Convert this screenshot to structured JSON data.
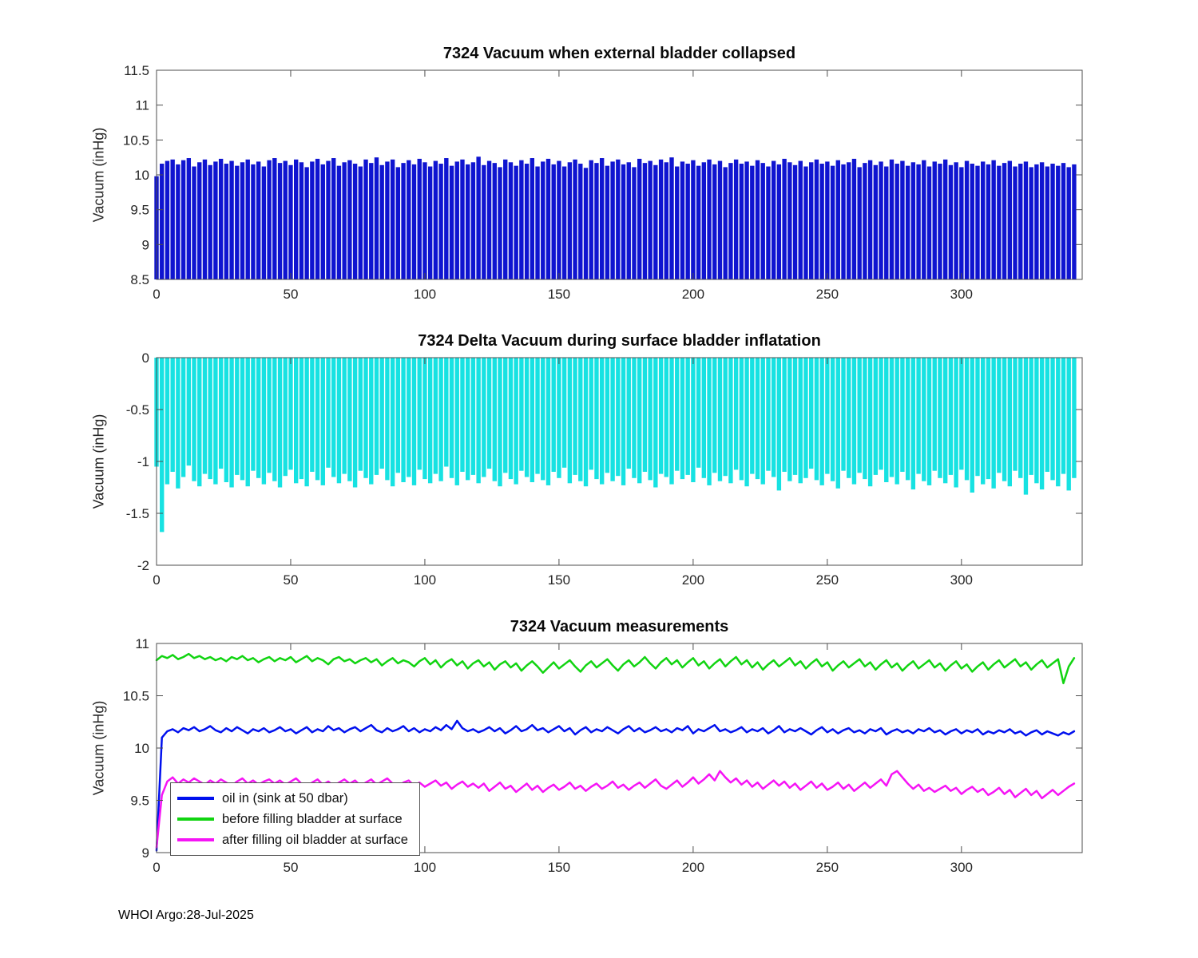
{
  "figure": {
    "footer": "WHOI Argo:28-Jul-2025"
  },
  "chart_data": [
    {
      "type": "bar",
      "title": "7324 Vacuum when external bladder collapsed",
      "ylabel": "Vacuum (inHg)",
      "color": "#0f14d0",
      "baseline": 8.5,
      "ylim": [
        8.5,
        11.5
      ],
      "yticks": [
        8.5,
        9,
        9.5,
        10,
        10.5,
        11,
        11.5
      ],
      "ytick_labels": [
        "8.5",
        "9",
        "9.5",
        "10",
        "10.5",
        "11",
        "11.5"
      ],
      "xlim": [
        0,
        345
      ],
      "xticks": [
        0,
        50,
        100,
        150,
        200,
        250,
        300
      ],
      "xtick_labels": [
        "0",
        "50",
        "100",
        "150",
        "200",
        "250",
        "300"
      ],
      "x_step": 2,
      "grid": false,
      "values": [
        9.98,
        10.16,
        10.2,
        10.22,
        10.15,
        10.21,
        10.24,
        10.12,
        10.18,
        10.22,
        10.14,
        10.19,
        10.23,
        10.16,
        10.2,
        10.13,
        10.18,
        10.22,
        10.15,
        10.19,
        10.12,
        10.21,
        10.24,
        10.17,
        10.2,
        10.14,
        10.22,
        10.18,
        10.11,
        10.19,
        10.23,
        10.15,
        10.2,
        10.24,
        10.13,
        10.18,
        10.21,
        10.16,
        10.12,
        10.22,
        10.17,
        10.25,
        10.14,
        10.19,
        10.22,
        10.11,
        10.17,
        10.21,
        10.15,
        10.23,
        10.18,
        10.12,
        10.2,
        10.16,
        10.24,
        10.13,
        10.19,
        10.22,
        10.15,
        10.18,
        10.26,
        10.14,
        10.2,
        10.17,
        10.11,
        10.22,
        10.18,
        10.13,
        10.21,
        10.16,
        10.24,
        10.12,
        10.19,
        10.23,
        10.15,
        10.2,
        10.12,
        10.18,
        10.22,
        10.16,
        10.1,
        10.21,
        10.17,
        10.24,
        10.13,
        10.19,
        10.22,
        10.15,
        10.18,
        10.11,
        10.23,
        10.17,
        10.2,
        10.14,
        10.22,
        10.18,
        10.25,
        10.12,
        10.19,
        10.16,
        10.21,
        10.13,
        10.18,
        10.22,
        10.15,
        10.2,
        10.11,
        10.17,
        10.22,
        10.16,
        10.19,
        10.13,
        10.21,
        10.17,
        10.12,
        10.2,
        10.15,
        10.23,
        10.18,
        10.14,
        10.2,
        10.12,
        10.18,
        10.22,
        10.16,
        10.19,
        10.13,
        10.21,
        10.15,
        10.18,
        10.23,
        10.11,
        10.17,
        10.21,
        10.14,
        10.19,
        10.12,
        10.22,
        10.16,
        10.2,
        10.13,
        10.18,
        10.15,
        10.21,
        10.12,
        10.19,
        10.16,
        10.22,
        10.14,
        10.18,
        10.11,
        10.2,
        10.16,
        10.13,
        10.19,
        10.15,
        10.21,
        10.13,
        10.17,
        10.2,
        10.12,
        10.16,
        10.19,
        10.11,
        10.15,
        10.18,
        10.12,
        10.16,
        10.13,
        10.17,
        10.11,
        10.15
      ]
    },
    {
      "type": "bar",
      "title": "7324 Delta Vacuum during surface bladder inflatation",
      "ylabel": "Vacuum (inHg)",
      "color": "#17e2e2",
      "baseline": 0,
      "ylim": [
        -2,
        0
      ],
      "yticks": [
        -2,
        -1.5,
        -1,
        -0.5,
        0
      ],
      "ytick_labels": [
        "-2",
        "-1.5",
        "-1",
        "-0.5",
        "0"
      ],
      "xlim": [
        0,
        345
      ],
      "xticks": [
        0,
        50,
        100,
        150,
        200,
        250,
        300
      ],
      "xtick_labels": [
        "0",
        "50",
        "100",
        "150",
        "200",
        "250",
        "300"
      ],
      "x_step": 2,
      "grid": false,
      "values": [
        -1.05,
        -1.68,
        -1.22,
        -1.1,
        -1.26,
        -1.15,
        -1.04,
        -1.19,
        -1.24,
        -1.12,
        -1.17,
        -1.22,
        -1.07,
        -1.2,
        -1.25,
        -1.13,
        -1.18,
        -1.24,
        -1.09,
        -1.16,
        -1.22,
        -1.11,
        -1.19,
        -1.25,
        -1.14,
        -1.08,
        -1.21,
        -1.17,
        -1.24,
        -1.1,
        -1.18,
        -1.23,
        -1.06,
        -1.15,
        -1.21,
        -1.12,
        -1.19,
        -1.25,
        -1.09,
        -1.16,
        -1.22,
        -1.13,
        -1.07,
        -1.18,
        -1.24,
        -1.11,
        -1.2,
        -1.15,
        -1.23,
        -1.08,
        -1.17,
        -1.21,
        -1.12,
        -1.19,
        -1.05,
        -1.16,
        -1.23,
        -1.1,
        -1.18,
        -1.13,
        -1.21,
        -1.15,
        -1.07,
        -1.19,
        -1.24,
        -1.11,
        -1.17,
        -1.22,
        -1.09,
        -1.15,
        -1.2,
        -1.12,
        -1.18,
        -1.23,
        -1.1,
        -1.16,
        -1.06,
        -1.21,
        -1.13,
        -1.19,
        -1.24,
        -1.08,
        -1.17,
        -1.22,
        -1.11,
        -1.19,
        -1.14,
        -1.23,
        -1.07,
        -1.16,
        -1.21,
        -1.1,
        -1.18,
        -1.25,
        -1.12,
        -1.15,
        -1.22,
        -1.09,
        -1.17,
        -1.13,
        -1.2,
        -1.06,
        -1.16,
        -1.23,
        -1.11,
        -1.19,
        -1.14,
        -1.21,
        -1.08,
        -1.18,
        -1.24,
        -1.12,
        -1.17,
        -1.22,
        -1.09,
        -1.15,
        -1.28,
        -1.1,
        -1.19,
        -1.13,
        -1.21,
        -1.16,
        -1.07,
        -1.18,
        -1.23,
        -1.12,
        -1.19,
        -1.26,
        -1.09,
        -1.16,
        -1.22,
        -1.11,
        -1.17,
        -1.24,
        -1.13,
        -1.08,
        -1.2,
        -1.15,
        -1.22,
        -1.1,
        -1.18,
        -1.27,
        -1.12,
        -1.19,
        -1.23,
        -1.09,
        -1.16,
        -1.21,
        -1.13,
        -1.25,
        -1.08,
        -1.18,
        -1.3,
        -1.14,
        -1.22,
        -1.17,
        -1.26,
        -1.11,
        -1.19,
        -1.24,
        -1.09,
        -1.16,
        -1.32,
        -1.13,
        -1.21,
        -1.27,
        -1.1,
        -1.18,
        -1.24,
        -1.12,
        -1.28,
        -1.16
      ]
    },
    {
      "type": "line",
      "title": "7324 Vacuum measurements",
      "ylabel": "Vacuum (inHg)",
      "ylim": [
        9,
        11
      ],
      "yticks": [
        9,
        9.5,
        10,
        10.5,
        11
      ],
      "ytick_labels": [
        "9",
        "9.5",
        "10",
        "10.5",
        "11"
      ],
      "xlim": [
        0,
        345
      ],
      "xticks": [
        0,
        50,
        100,
        150,
        200,
        250,
        300
      ],
      "xtick_labels": [
        "0",
        "50",
        "100",
        "150",
        "200",
        "250",
        "300"
      ],
      "x_step": 2,
      "grid": false,
      "legend_position": "bottom-left",
      "series": [
        {
          "name": "oil in (sink at 50 dbar)",
          "color": "#0010ee",
          "values": [
            9.02,
            10.1,
            10.16,
            10.18,
            10.15,
            10.19,
            10.17,
            10.2,
            10.16,
            10.18,
            10.21,
            10.17,
            10.15,
            10.19,
            10.16,
            10.2,
            10.17,
            10.14,
            10.18,
            10.16,
            10.19,
            10.15,
            10.17,
            10.2,
            10.16,
            10.18,
            10.14,
            10.17,
            10.2,
            10.15,
            10.18,
            10.16,
            10.21,
            10.17,
            10.19,
            10.15,
            10.18,
            10.2,
            10.16,
            10.19,
            10.22,
            10.17,
            10.15,
            10.19,
            10.16,
            10.18,
            10.21,
            10.16,
            10.19,
            10.15,
            10.18,
            10.16,
            10.2,
            10.17,
            10.22,
            10.18,
            10.26,
            10.19,
            10.16,
            10.18,
            10.15,
            10.17,
            10.2,
            10.16,
            10.19,
            10.14,
            10.17,
            10.21,
            10.16,
            10.18,
            10.22,
            10.17,
            10.19,
            10.15,
            10.18,
            10.21,
            10.16,
            10.19,
            10.13,
            10.17,
            10.2,
            10.15,
            10.18,
            10.16,
            10.2,
            10.17,
            10.14,
            10.18,
            10.21,
            10.16,
            10.19,
            10.15,
            10.17,
            10.2,
            10.16,
            10.18,
            10.15,
            10.19,
            10.17,
            10.21,
            10.14,
            10.18,
            10.16,
            10.19,
            10.22,
            10.16,
            10.18,
            10.15,
            10.17,
            10.2,
            10.15,
            10.18,
            10.16,
            10.19,
            10.14,
            10.17,
            10.21,
            10.15,
            10.18,
            10.16,
            10.19,
            10.16,
            10.13,
            10.17,
            10.2,
            10.15,
            10.18,
            10.14,
            10.17,
            10.19,
            10.15,
            10.17,
            10.14,
            10.18,
            10.16,
            10.19,
            10.13,
            10.16,
            10.18,
            10.15,
            10.17,
            10.14,
            10.18,
            10.16,
            10.19,
            10.15,
            10.17,
            10.13,
            10.16,
            10.18,
            10.14,
            10.17,
            10.15,
            10.18,
            10.13,
            10.16,
            10.14,
            10.17,
            10.15,
            10.18,
            10.14,
            10.16,
            10.12,
            10.15,
            10.17,
            10.13,
            10.16,
            10.14,
            10.12,
            10.15,
            10.13,
            10.16
          ]
        },
        {
          "name": "before filling bladder at surface",
          "color": "#11d411",
          "values": [
            10.84,
            10.88,
            10.86,
            10.89,
            10.85,
            10.87,
            10.9,
            10.86,
            10.88,
            10.85,
            10.87,
            10.84,
            10.86,
            10.83,
            10.87,
            10.85,
            10.88,
            10.84,
            10.86,
            10.82,
            10.85,
            10.87,
            10.83,
            10.86,
            10.84,
            10.87,
            10.82,
            10.85,
            10.88,
            10.83,
            10.86,
            10.84,
            10.8,
            10.85,
            10.87,
            10.83,
            10.85,
            10.81,
            10.84,
            10.86,
            10.82,
            10.85,
            10.79,
            10.83,
            10.86,
            10.81,
            10.84,
            10.82,
            10.78,
            10.83,
            10.86,
            10.8,
            10.84,
            10.77,
            10.82,
            10.85,
            10.79,
            10.83,
            10.76,
            10.81,
            10.84,
            10.78,
            10.82,
            10.75,
            10.8,
            10.83,
            10.77,
            10.81,
            10.74,
            10.79,
            10.83,
            10.78,
            10.72,
            10.77,
            10.82,
            10.76,
            10.8,
            10.84,
            10.78,
            10.73,
            10.79,
            10.83,
            10.77,
            10.81,
            10.85,
            10.79,
            10.74,
            10.8,
            10.84,
            10.78,
            10.82,
            10.87,
            10.81,
            10.76,
            10.82,
            10.86,
            10.8,
            10.84,
            10.77,
            10.82,
            10.86,
            10.79,
            10.83,
            10.76,
            10.81,
            10.85,
            10.78,
            10.83,
            10.87,
            10.8,
            10.84,
            10.77,
            10.82,
            10.75,
            10.8,
            10.84,
            10.78,
            10.82,
            10.86,
            10.79,
            10.83,
            10.76,
            10.81,
            10.85,
            10.78,
            10.82,
            10.74,
            10.79,
            10.83,
            10.77,
            10.81,
            10.85,
            10.78,
            10.82,
            10.75,
            10.8,
            10.84,
            10.77,
            10.81,
            10.74,
            10.79,
            10.83,
            10.76,
            10.8,
            10.84,
            10.77,
            10.81,
            10.74,
            10.79,
            10.83,
            10.76,
            10.8,
            10.73,
            10.78,
            10.82,
            10.75,
            10.8,
            10.84,
            10.77,
            10.81,
            10.85,
            10.78,
            10.82,
            10.75,
            10.8,
            10.84,
            10.77,
            10.81,
            10.85,
            10.62,
            10.78,
            10.86
          ]
        },
        {
          "name": "after filling oil bladder at surface",
          "color": "#f514f5",
          "values": [
            9.05,
            9.55,
            9.68,
            9.72,
            9.66,
            9.7,
            9.67,
            9.71,
            9.68,
            9.65,
            9.69,
            9.66,
            9.7,
            9.67,
            9.64,
            9.68,
            9.71,
            9.66,
            9.69,
            9.65,
            9.68,
            9.7,
            9.66,
            9.69,
            9.65,
            9.68,
            9.71,
            9.66,
            9.63,
            9.67,
            9.7,
            9.65,
            9.68,
            9.64,
            9.67,
            9.7,
            9.66,
            9.69,
            9.64,
            9.67,
            9.7,
            9.65,
            9.68,
            9.71,
            9.66,
            9.62,
            9.67,
            9.69,
            9.64,
            9.67,
            9.63,
            9.66,
            9.69,
            9.64,
            9.67,
            9.61,
            9.65,
            9.68,
            9.63,
            9.66,
            9.62,
            9.66,
            9.59,
            9.63,
            9.67,
            9.61,
            9.64,
            9.58,
            9.62,
            9.66,
            9.6,
            9.64,
            9.58,
            9.62,
            9.65,
            9.6,
            9.63,
            9.67,
            9.61,
            9.64,
            9.59,
            9.63,
            9.66,
            9.61,
            9.64,
            9.68,
            9.62,
            9.65,
            9.6,
            9.64,
            9.67,
            9.62,
            9.66,
            9.7,
            9.64,
            9.61,
            9.65,
            9.69,
            9.63,
            9.67,
            9.72,
            9.66,
            9.7,
            9.75,
            9.69,
            9.78,
            9.72,
            9.67,
            9.71,
            9.65,
            9.69,
            9.63,
            9.67,
            9.61,
            9.65,
            9.69,
            9.64,
            9.68,
            9.62,
            9.66,
            9.6,
            9.64,
            9.68,
            9.62,
            9.66,
            9.6,
            9.63,
            9.67,
            9.61,
            9.65,
            9.59,
            9.63,
            9.67,
            9.62,
            9.66,
            9.7,
            9.64,
            9.75,
            9.78,
            9.72,
            9.66,
            9.61,
            9.65,
            9.59,
            9.62,
            9.58,
            9.61,
            9.64,
            9.59,
            9.62,
            9.56,
            9.6,
            9.63,
            9.58,
            9.61,
            9.55,
            9.58,
            9.62,
            9.56,
            9.6,
            9.53,
            9.57,
            9.61,
            9.55,
            9.59,
            9.52,
            9.56,
            9.6,
            9.55,
            9.59,
            9.63,
            9.66
          ]
        }
      ]
    }
  ]
}
